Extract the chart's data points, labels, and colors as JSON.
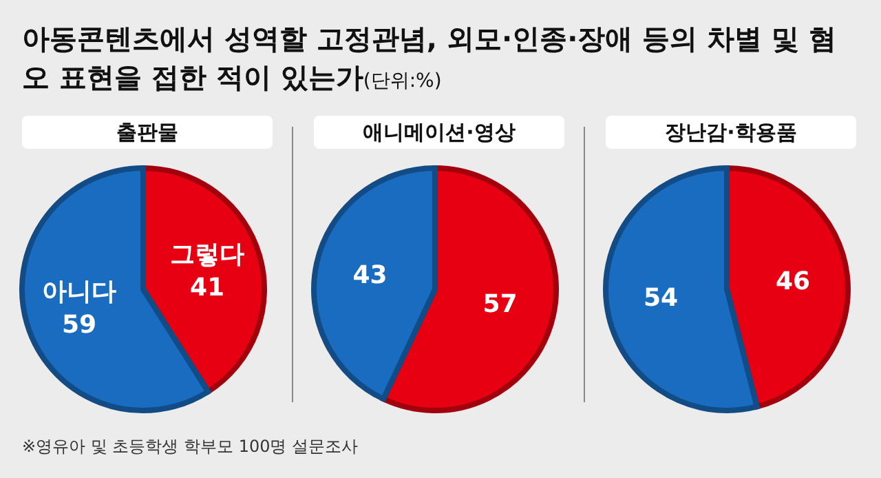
{
  "chart_data": [
    {
      "type": "other",
      "title": "아동콘텐츠에서 성역할 고정관념, 외모·인종·장애 등의 차별 및 혐오 표현을 접한 적이 있는가",
      "subtitle": "(단위:%)",
      "annotations": [
        "※영유아 및 초등학생 학부모 100명 설문조사"
      ]
    },
    {
      "type": "pie",
      "title": "출판물",
      "categories": [
        "그렇다",
        "아니다"
      ],
      "values": [
        41,
        59
      ],
      "colors": [
        "#e60012",
        "#1a6cc0"
      ],
      "data_labels": true
    },
    {
      "type": "pie",
      "title": "애니메이션·영상",
      "categories": [
        null,
        null
      ],
      "values": [
        57,
        43
      ],
      "colors": [
        "#e60012",
        "#1a6cc0"
      ],
      "data_labels": true
    },
    {
      "type": "pie",
      "title": "장난감·학용품",
      "categories": [
        null,
        null
      ],
      "values": [
        46,
        54
      ],
      "colors": [
        "#e60012",
        "#1a6cc0"
      ],
      "data_labels": true
    }
  ]
}
